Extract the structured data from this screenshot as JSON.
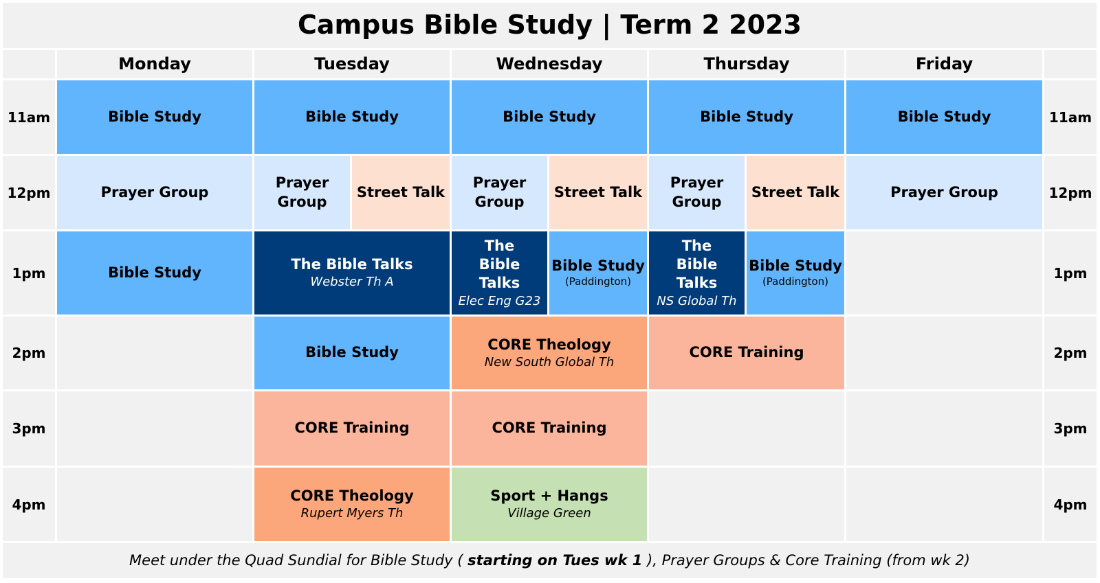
{
  "title": "Campus Bible Study | Term 2 2023",
  "days": [
    "Monday",
    "Tuesday",
    "Wednesday",
    "Thursday",
    "Friday"
  ],
  "times": [
    "11am",
    "12pm",
    "1pm",
    "2pm",
    "3pm",
    "4pm"
  ],
  "events": {
    "bible_study": "Bible Study",
    "prayer_group": "Prayer Group",
    "street_talk": "Street Talk",
    "bible_talks": "The Bible Talks",
    "paddington": "(Paddington)",
    "core_training": "CORE Training",
    "core_theology": "CORE Theology",
    "sport_hangs": "Sport + Hangs",
    "loc_webster": "Webster Th A",
    "loc_elec": "Elec Eng G23",
    "loc_ns": "NS Global Th",
    "loc_nsg": "New South Global Th",
    "loc_rupert": "Rupert Myers Th",
    "loc_village": "Village Green"
  },
  "footer": {
    "part1": "Meet under the Quad Sundial for Bible Study ( ",
    "bold": "starting on Tues wk 1",
    "part2": " ), Prayer Groups & Core Training (from wk 2)"
  },
  "colors": {
    "bible_study": "#61b5fd",
    "prayer_group": "#d6e8fd",
    "street_talk": "#fde0d0",
    "bible_talks": "#003b7a",
    "core_training": "#fcb59d",
    "core_theology": "#fca77b",
    "sport": "#c5e0b3",
    "empty": "#f1f1f1"
  }
}
